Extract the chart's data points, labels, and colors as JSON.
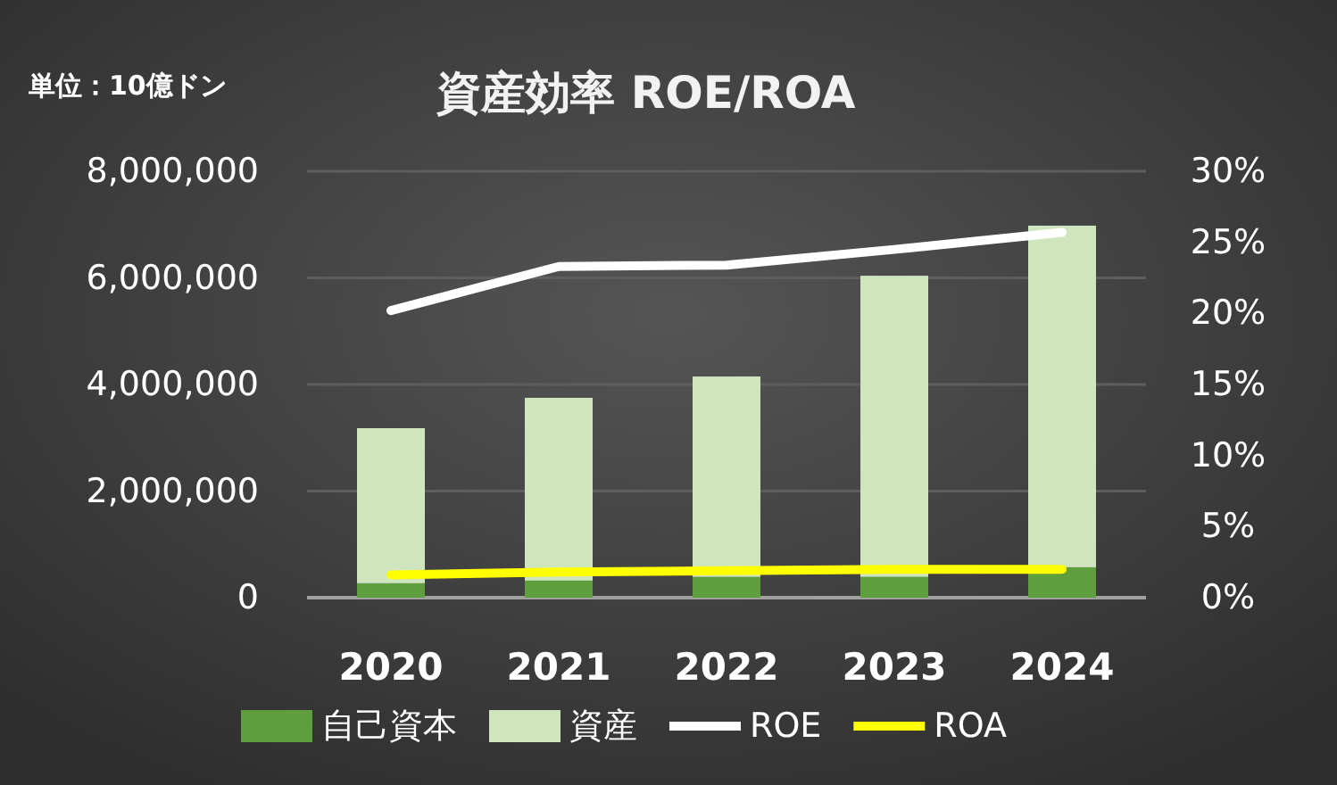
{
  "chart_data": {
    "type": "bar",
    "title": "資産効率 ROE/ROA",
    "annotations": [
      "単位：10億ドン"
    ],
    "categories": [
      "2020",
      "2021",
      "2022",
      "2023",
      "2024"
    ],
    "stacked": true,
    "series": [
      {
        "name": "自己資本",
        "color": "#5e9e3c",
        "values": [
          270000,
          320000,
          390000,
          390000,
          570000
        ]
      },
      {
        "name": "資産",
        "color": "#cfe5bd",
        "values": [
          2910000,
          3430000,
          3760000,
          5650000,
          6410000
        ]
      },
      {
        "name": "ROE",
        "type": "line",
        "axis": "y2",
        "color": "#ffffff",
        "values": [
          20.2,
          23.3,
          23.4,
          24.5,
          25.7
        ]
      },
      {
        "name": "ROA",
        "type": "line",
        "axis": "y2",
        "color": "#ffff00",
        "values": [
          1.6,
          1.8,
          1.9,
          2.0,
          2.0
        ]
      }
    ],
    "ylim": [
      0,
      8000000
    ],
    "yticks": [
      {
        "value": 0,
        "label": "0"
      },
      {
        "value": 2000000,
        "label": "2,000,000"
      },
      {
        "value": 4000000,
        "label": "4,000,000"
      },
      {
        "value": 6000000,
        "label": "6,000,000"
      },
      {
        "value": 8000000,
        "label": "8,000,000"
      }
    ],
    "y2lim": [
      0,
      30
    ],
    "y2ticks": [
      {
        "value": 0,
        "label": "0%"
      },
      {
        "value": 5,
        "label": "5%"
      },
      {
        "value": 10,
        "label": "10%"
      },
      {
        "value": 15,
        "label": "15%"
      },
      {
        "value": 20,
        "label": "20%"
      },
      {
        "value": 25,
        "label": "25%"
      },
      {
        "value": 30,
        "label": "30%"
      }
    ],
    "grid": "y",
    "legend": "bottom"
  }
}
